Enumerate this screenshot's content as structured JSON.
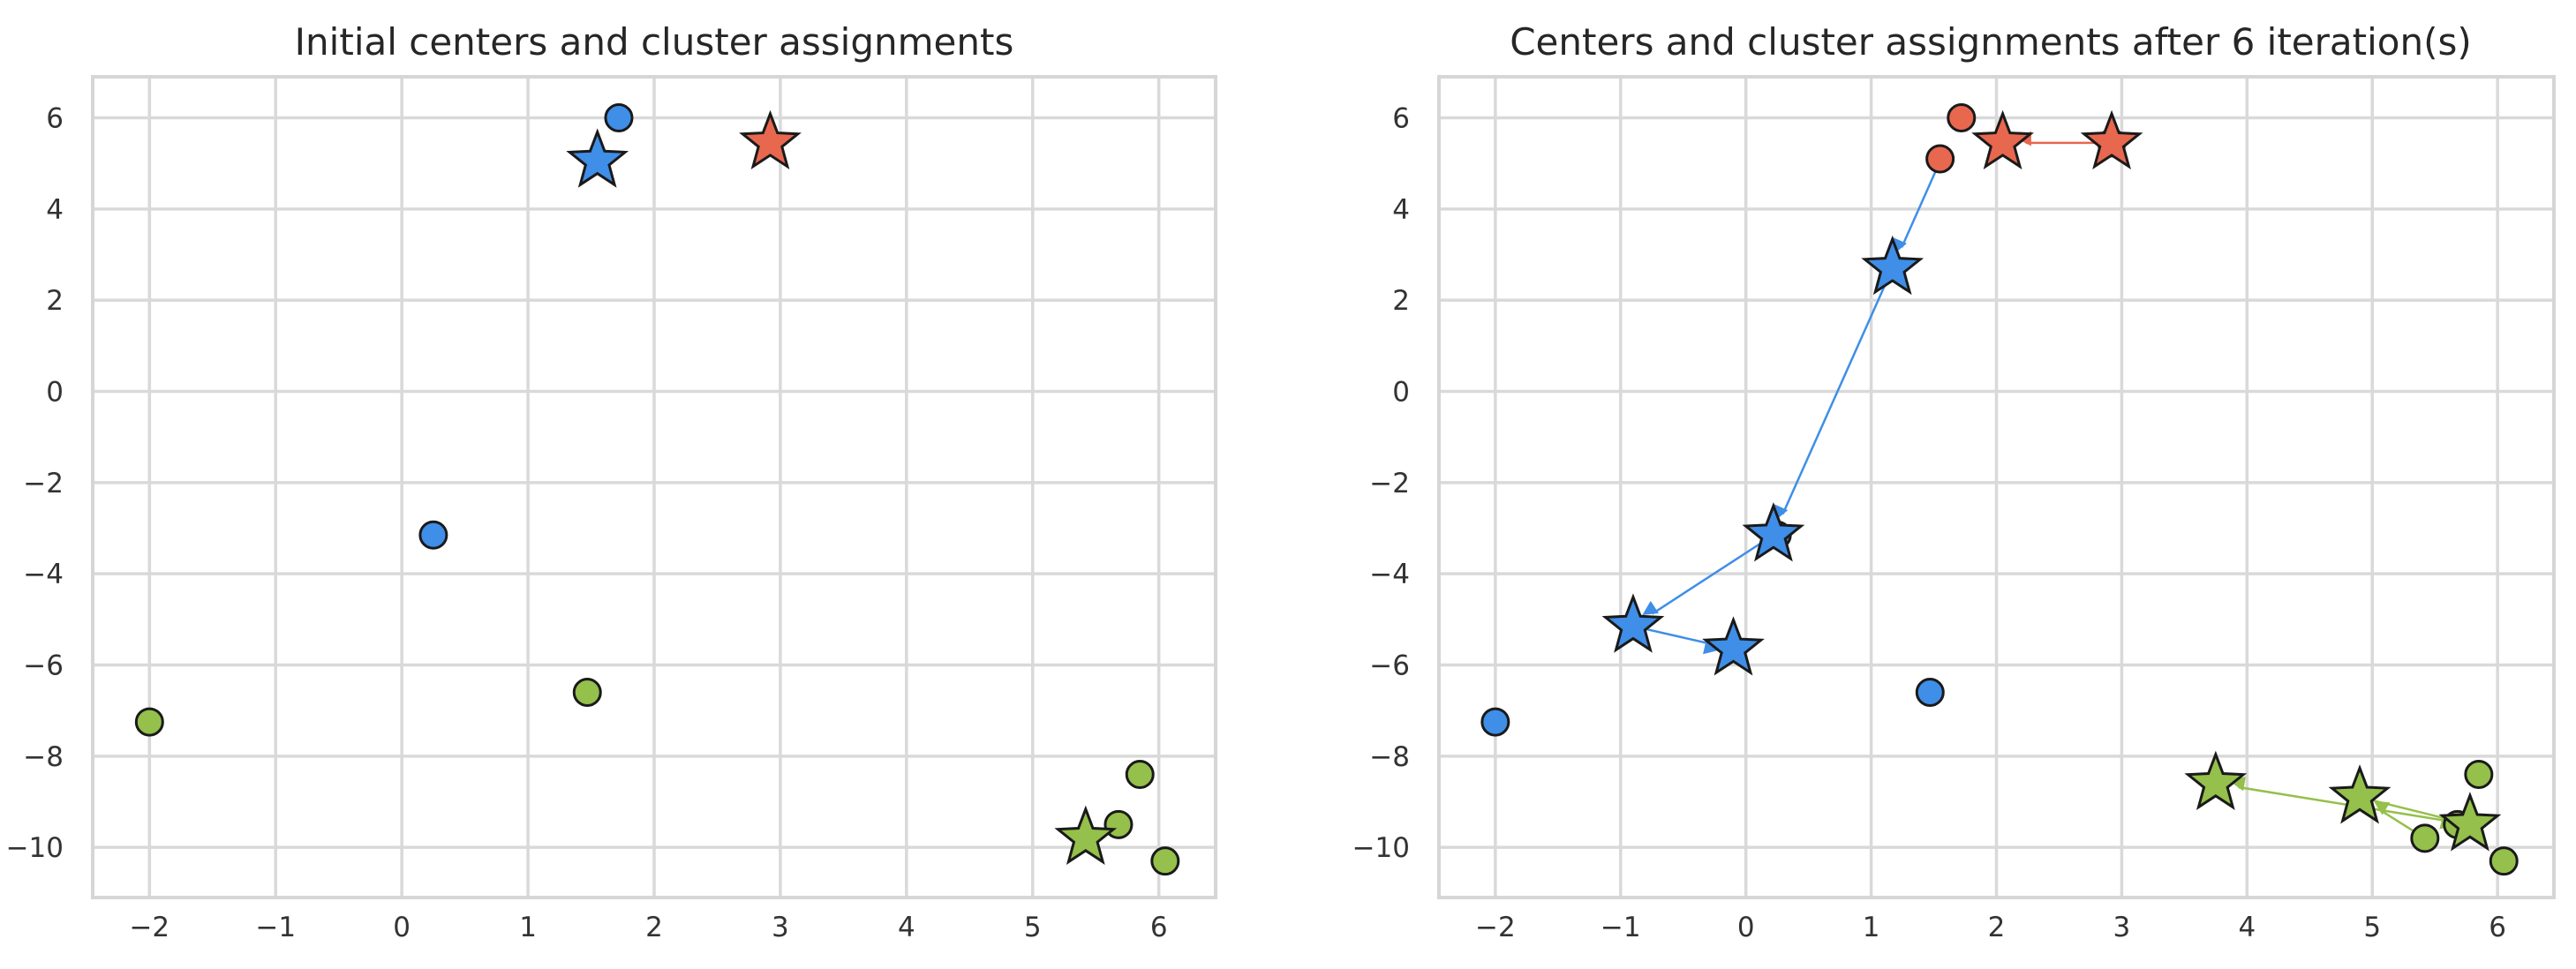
{
  "colors": {
    "red": "#e8674f",
    "blue": "#3f8ee8",
    "green": "#94c04b",
    "edge": "#1a1a1a",
    "grid": "#d9d9d9"
  },
  "chart_data": [
    {
      "type": "scatter",
      "title": "Initial centers and cluster assignments",
      "xlabel": "",
      "ylabel": "",
      "xlim": [
        -2.45,
        6.45
      ],
      "ylim": [
        -11.1,
        6.9
      ],
      "xticks": [
        -2,
        -1,
        0,
        1,
        2,
        3,
        4,
        5,
        6
      ],
      "yticks": [
        6,
        4,
        2,
        0,
        -2,
        -4,
        -6,
        -8,
        -10
      ],
      "xtick_labels": [
        "−2",
        "−1",
        "0",
        "1",
        "2",
        "3",
        "4",
        "5",
        "6"
      ],
      "ytick_labels": [
        "6",
        "4",
        "2",
        "0",
        "−2",
        "−4",
        "−6",
        "−8",
        "−10"
      ],
      "grid": true,
      "points": [
        {
          "x": 1.72,
          "y": 6.0,
          "cluster": "blue"
        },
        {
          "x": 0.25,
          "y": -3.15,
          "cluster": "blue"
        },
        {
          "x": -2.0,
          "y": -7.25,
          "cluster": "green"
        },
        {
          "x": 1.47,
          "y": -6.6,
          "cluster": "green"
        },
        {
          "x": 5.85,
          "y": -8.4,
          "cluster": "green"
        },
        {
          "x": 5.68,
          "y": -9.5,
          "cluster": "green"
        },
        {
          "x": 6.05,
          "y": -10.3,
          "cluster": "green"
        }
      ],
      "centers": [
        {
          "x": 1.55,
          "y": 5.05,
          "cluster": "blue"
        },
        {
          "x": 2.92,
          "y": 5.45,
          "cluster": "red"
        },
        {
          "x": 5.42,
          "y": -9.8,
          "cluster": "green"
        }
      ],
      "paths": []
    },
    {
      "type": "scatter",
      "title": "Centers and cluster assignments after 6 iteration(s)",
      "xlabel": "",
      "ylabel": "",
      "xlim": [
        -2.45,
        6.45
      ],
      "ylim": [
        -11.1,
        6.9
      ],
      "xticks": [
        -2,
        -1,
        0,
        1,
        2,
        3,
        4,
        5,
        6
      ],
      "yticks": [
        6,
        4,
        2,
        0,
        -2,
        -4,
        -6,
        -8,
        -10
      ],
      "xtick_labels": [
        "−2",
        "−1",
        "0",
        "1",
        "2",
        "3",
        "4",
        "5",
        "6"
      ],
      "ytick_labels": [
        "6",
        "4",
        "2",
        "0",
        "−2",
        "−4",
        "−6",
        "−8",
        "−10"
      ],
      "grid": true,
      "points": [
        {
          "x": 1.72,
          "y": 6.0,
          "cluster": "red"
        },
        {
          "x": 1.55,
          "y": 5.1,
          "cluster": "red"
        },
        {
          "x": 2.92,
          "y": 5.45,
          "cluster": "red"
        },
        {
          "x": 0.25,
          "y": -3.15,
          "cluster": "blue"
        },
        {
          "x": -2.0,
          "y": -7.25,
          "cluster": "blue"
        },
        {
          "x": 1.47,
          "y": -6.6,
          "cluster": "blue"
        },
        {
          "x": 5.85,
          "y": -8.4,
          "cluster": "green"
        },
        {
          "x": 5.68,
          "y": -9.5,
          "cluster": "green"
        },
        {
          "x": 6.05,
          "y": -10.3,
          "cluster": "green"
        },
        {
          "x": 5.42,
          "y": -9.8,
          "cluster": "green"
        }
      ],
      "centers": [
        {
          "x": 2.05,
          "y": 5.45,
          "cluster": "red"
        },
        {
          "x": 2.92,
          "y": 5.45,
          "cluster": "red"
        },
        {
          "x": 1.17,
          "y": 2.7,
          "cluster": "blue"
        },
        {
          "x": 0.22,
          "y": -3.15,
          "cluster": "blue"
        },
        {
          "x": -0.9,
          "y": -5.15,
          "cluster": "blue"
        },
        {
          "x": -0.1,
          "y": -5.65,
          "cluster": "blue"
        },
        {
          "x": 3.75,
          "y": -8.6,
          "cluster": "green"
        },
        {
          "x": 4.9,
          "y": -8.9,
          "cluster": "green"
        },
        {
          "x": 5.78,
          "y": -9.5,
          "cluster": "green"
        }
      ],
      "paths": [
        {
          "cluster": "red",
          "points": [
            [
              2.92,
              5.45
            ],
            [
              2.05,
              5.45
            ]
          ]
        },
        {
          "cluster": "blue",
          "points": [
            [
              1.55,
              5.05
            ],
            [
              1.17,
              2.7
            ],
            [
              0.22,
              -3.15
            ],
            [
              -0.9,
              -5.15
            ],
            [
              -0.1,
              -5.65
            ]
          ]
        },
        {
          "cluster": "green",
          "points": [
            [
              5.42,
              -9.8
            ],
            [
              4.9,
              -8.9
            ],
            [
              5.78,
              -9.5
            ],
            [
              3.75,
              -8.6
            ]
          ]
        }
      ]
    }
  ]
}
